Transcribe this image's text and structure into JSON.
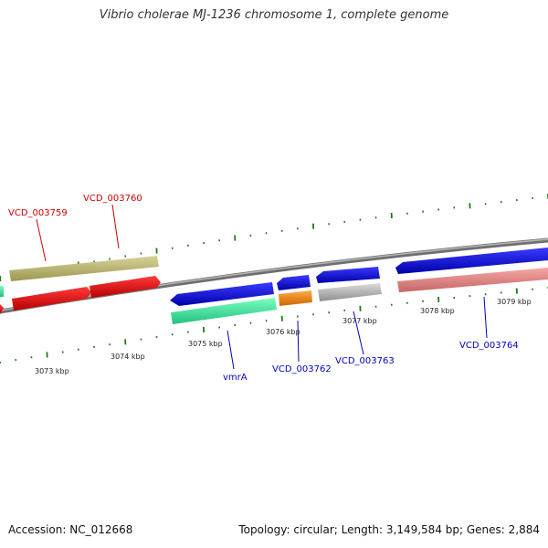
{
  "title": "Vibrio cholerae MJ-1236 chromosome 1, complete genome",
  "footer": {
    "accession": "Accession: NC_012668",
    "summary": "Topology: circular; Length: 3,149,584 bp; Genes: 2,884"
  },
  "scale_labels": [
    "3073 kbp",
    "3074 kbp",
    "3075 kbp",
    "3076 kbp",
    "3077 kbp",
    "3078 kbp",
    "3079 kbp"
  ],
  "gene_labels": {
    "vcd_003759": "VCD_003759",
    "vcd_003760": "VCD_003760",
    "vmra": "vmrA",
    "vcd_003762": "VCD_003762",
    "vcd_003763": "VCD_003763",
    "vcd_003764": "VCD_003764"
  },
  "colors": {
    "tick": "#1e7a1e",
    "backbone": "#808080",
    "red_label": "#cc0000",
    "blue_label": "#0000bb",
    "gene_olive": "#bdb76b",
    "gene_red": "#ee0000",
    "gene_blue": "#0000ee",
    "gene_green": "#33ee99",
    "gene_orange": "#ff8800",
    "gene_grey": "#bbbbbb",
    "gene_pink": "#ee8888"
  }
}
